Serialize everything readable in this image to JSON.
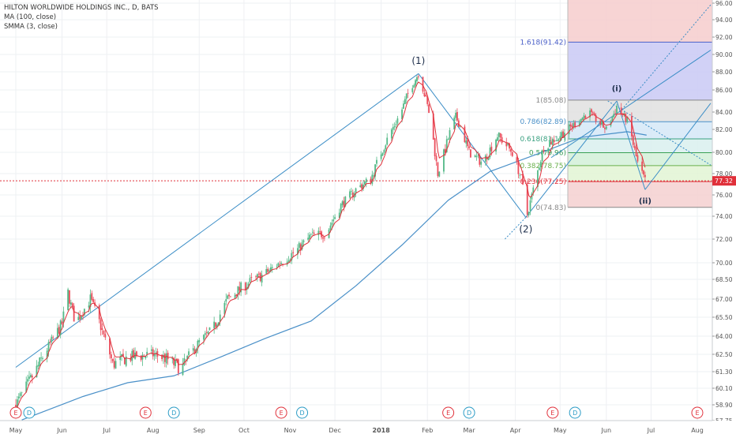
{
  "legend": {
    "symbol": "HILTON WORLDWIDE HOLDINGS INC., D, BATS",
    "ma": "MA (100, close)",
    "smma": "SMMA (3, close)"
  },
  "last_price": "77.32",
  "colors": {
    "up": "#53b987",
    "down": "#eb4d5c",
    "ma": "#4a90c8",
    "smma": "#e0303a",
    "trend": "#3a8dc6",
    "price_line": "#e0303a"
  },
  "chart_data": {
    "type": "candlestick",
    "y_axis": {
      "min": 57.5,
      "max": 96,
      "ticks": [
        "96.00",
        "94.00",
        "92.00",
        "90.00",
        "88.00",
        "86.00",
        "84.00",
        "82.00",
        "80.00",
        "78.00",
        "76.00",
        "74.00",
        "72.00",
        "70.00",
        "68.50",
        "67.00",
        "65.50",
        "64.00",
        "62.50",
        "61.30",
        "60.10",
        "58.90",
        "57.75"
      ]
    },
    "x_axis": {
      "ticks": [
        "May",
        "Jun",
        "Jul",
        "Aug",
        "Sep",
        "Oct",
        "Nov",
        "Dec",
        "2018",
        "Feb",
        "Mar",
        "Apr",
        "May",
        "Jun",
        "Jul",
        "Aug"
      ]
    },
    "price_path": [
      [
        "2017-05-01",
        58.9
      ],
      [
        "2017-05-15",
        61.5
      ],
      [
        "2017-06-01",
        65.0
      ],
      [
        "2017-06-05",
        67.5
      ],
      [
        "2017-06-10",
        65.0
      ],
      [
        "2017-06-20",
        67.0
      ],
      [
        "2017-06-25",
        65.5
      ],
      [
        "2017-07-05",
        61.8
      ],
      [
        "2017-07-15",
        62.3
      ],
      [
        "2017-08-01",
        62.5
      ],
      [
        "2017-08-10",
        62.2
      ],
      [
        "2017-08-20",
        61.5
      ],
      [
        "2017-09-01",
        63.5
      ],
      [
        "2017-09-10",
        64.5
      ],
      [
        "2017-09-20",
        67.0
      ],
      [
        "2017-10-01",
        68.0
      ],
      [
        "2017-10-15",
        69.0
      ],
      [
        "2017-10-25",
        70.0
      ],
      [
        "2017-11-05",
        71.0
      ],
      [
        "2017-11-15",
        72.3
      ],
      [
        "2017-11-25",
        72.5
      ],
      [
        "2017-12-05",
        75.0
      ],
      [
        "2017-12-15",
        76.5
      ],
      [
        "2017-12-25",
        77.5
      ],
      [
        "2018-01-01",
        80.0
      ],
      [
        "2018-01-10",
        82.5
      ],
      [
        "2018-01-20",
        86.0
      ],
      [
        "2018-01-26",
        87.8
      ],
      [
        "2018-02-02",
        84.0
      ],
      [
        "2018-02-08",
        78.0
      ],
      [
        "2018-02-20",
        83.5
      ],
      [
        "2018-03-01",
        80.0
      ],
      [
        "2018-03-10",
        79.0
      ],
      [
        "2018-03-20",
        81.5
      ],
      [
        "2018-03-30",
        80.0
      ],
      [
        "2018-04-05",
        77.5
      ],
      [
        "2018-04-09",
        74.2
      ],
      [
        "2018-04-20",
        80.5
      ],
      [
        "2018-05-01",
        81.5
      ],
      [
        "2018-05-10",
        82.5
      ],
      [
        "2018-05-20",
        84.0
      ],
      [
        "2018-06-01",
        82.0
      ],
      [
        "2018-06-08",
        84.5
      ],
      [
        "2018-06-15",
        83.0
      ],
      [
        "2018-06-22",
        79.0
      ],
      [
        "2018-06-27",
        77.3
      ]
    ],
    "ma100_path": [
      [
        "2017-05-05",
        57.8
      ],
      [
        "2017-06-15",
        59.5
      ],
      [
        "2017-07-15",
        60.5
      ],
      [
        "2017-08-15",
        61.0
      ],
      [
        "2017-09-15",
        62.3
      ],
      [
        "2017-10-15",
        63.8
      ],
      [
        "2017-11-15",
        65.2
      ],
      [
        "2017-12-15",
        68.0
      ],
      [
        "2018-01-15",
        71.5
      ],
      [
        "2018-02-15",
        75.5
      ],
      [
        "2018-03-15",
        78.2
      ],
      [
        "2018-04-15",
        79.8
      ],
      [
        "2018-05-15",
        81.3
      ],
      [
        "2018-06-15",
        81.8
      ],
      [
        "2018-06-28",
        81.5
      ]
    ],
    "fibonacci": {
      "levels": [
        {
          "ratio": "0",
          "price": 74.83,
          "label": "0(74.83)"
        },
        {
          "ratio": "0.236",
          "price": 77.25,
          "label": "0.236(77.25)"
        },
        {
          "ratio": "0.382",
          "price": 78.75,
          "label": "0.382(78.75)"
        },
        {
          "ratio": "0.5",
          "price": 79.96,
          "label": "0.5(79.96)"
        },
        {
          "ratio": "0.618",
          "price": 81.17,
          "label": "0.618(81.17)"
        },
        {
          "ratio": "0.786",
          "price": 82.89,
          "label": "0.786(82.89)"
        },
        {
          "ratio": "1",
          "price": 85.08,
          "label": "1(85.08)"
        },
        {
          "ratio": "1.618",
          "price": 91.42,
          "label": "1.618(91.42)"
        }
      ]
    },
    "wave_labels": [
      {
        "text": "(1)",
        "date": "2018-01-26",
        "price": 88.9
      },
      {
        "text": "(2)",
        "date": "2018-04-08",
        "price": 72.6
      },
      {
        "text": "(i)",
        "date": "2018-06-08",
        "price": 85.9
      },
      {
        "text": "(ii)",
        "date": "2018-06-27",
        "price": 75.2
      }
    ],
    "events": [
      {
        "type": "E",
        "date": "2017-05-01"
      },
      {
        "type": "D",
        "date": "2017-05-10"
      },
      {
        "type": "E",
        "date": "2017-07-27"
      },
      {
        "type": "D",
        "date": "2017-08-15"
      },
      {
        "type": "E",
        "date": "2017-10-26"
      },
      {
        "type": "D",
        "date": "2017-11-09"
      },
      {
        "type": "E",
        "date": "2018-02-15"
      },
      {
        "type": "D",
        "date": "2018-03-01"
      },
      {
        "type": "E",
        "date": "2018-04-26"
      },
      {
        "type": "D",
        "date": "2018-05-11"
      },
      {
        "type": "E",
        "date": "2018-08-01"
      }
    ]
  }
}
